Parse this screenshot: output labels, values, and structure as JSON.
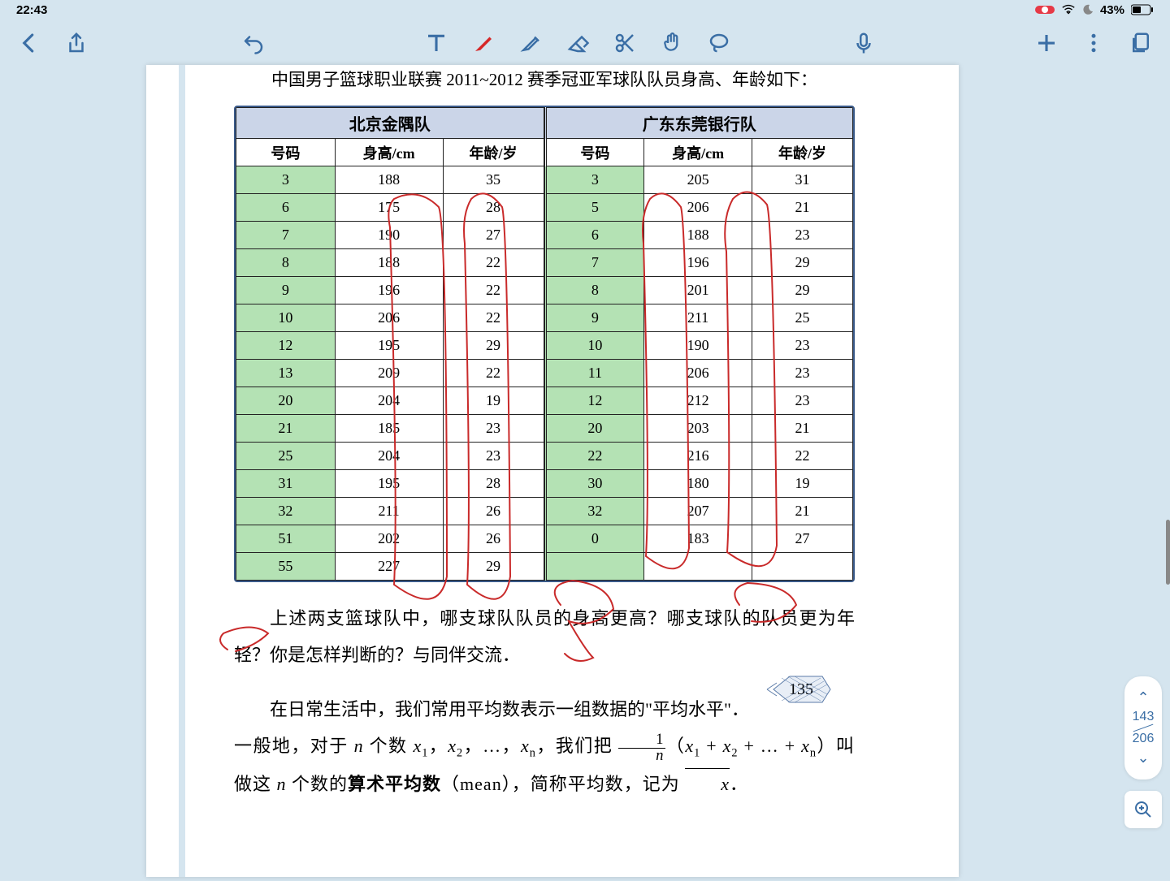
{
  "status": {
    "time": "22:43",
    "battery": "43%"
  },
  "content": {
    "title": "中国男子篮球职业联赛 2011~2012 赛季冠亚军球队队员身高、年龄如下：",
    "team1": {
      "name": "北京金隅队",
      "headers": [
        "号码",
        "身高/cm",
        "年龄/岁"
      ],
      "rows": [
        [
          "3",
          "188",
          "35"
        ],
        [
          "6",
          "175",
          "28"
        ],
        [
          "7",
          "190",
          "27"
        ],
        [
          "8",
          "188",
          "22"
        ],
        [
          "9",
          "196",
          "22"
        ],
        [
          "10",
          "206",
          "22"
        ],
        [
          "12",
          "195",
          "29"
        ],
        [
          "13",
          "209",
          "22"
        ],
        [
          "20",
          "204",
          "19"
        ],
        [
          "21",
          "185",
          "23"
        ],
        [
          "25",
          "204",
          "23"
        ],
        [
          "31",
          "195",
          "28"
        ],
        [
          "32",
          "211",
          "26"
        ],
        [
          "51",
          "202",
          "26"
        ],
        [
          "55",
          "227",
          "29"
        ]
      ]
    },
    "team2": {
      "name": "广东东莞银行队",
      "headers": [
        "号码",
        "身高/cm",
        "年龄/岁"
      ],
      "rows": [
        [
          "3",
          "205",
          "31"
        ],
        [
          "5",
          "206",
          "21"
        ],
        [
          "6",
          "188",
          "23"
        ],
        [
          "7",
          "196",
          "29"
        ],
        [
          "8",
          "201",
          "29"
        ],
        [
          "9",
          "211",
          "25"
        ],
        [
          "10",
          "190",
          "23"
        ],
        [
          "11",
          "206",
          "23"
        ],
        [
          "12",
          "212",
          "23"
        ],
        [
          "20",
          "203",
          "21"
        ],
        [
          "22",
          "216",
          "22"
        ],
        [
          "30",
          "180",
          "19"
        ],
        [
          "32",
          "207",
          "21"
        ],
        [
          "0",
          "183",
          "27"
        ],
        [
          "",
          "",
          ""
        ]
      ]
    },
    "para1": "上述两支篮球队中，哪支球队队员的身高更高？哪支球队的队员更为年轻？你是怎样判断的？与同伴交流．",
    "para2_a": "在日常生活中，我们常用平均数表示一组数据的\"平均水平\"．",
    "page_num": "135",
    "nav": {
      "cur": "143",
      "total": "206"
    }
  },
  "colors": {
    "bg": "#d5e5ef",
    "hdr": "#cbd5e8",
    "hl": "#b4e2b4",
    "border": "#3a5a8a",
    "pen": "#c92a2a",
    "accent": "#3a6ea5"
  }
}
